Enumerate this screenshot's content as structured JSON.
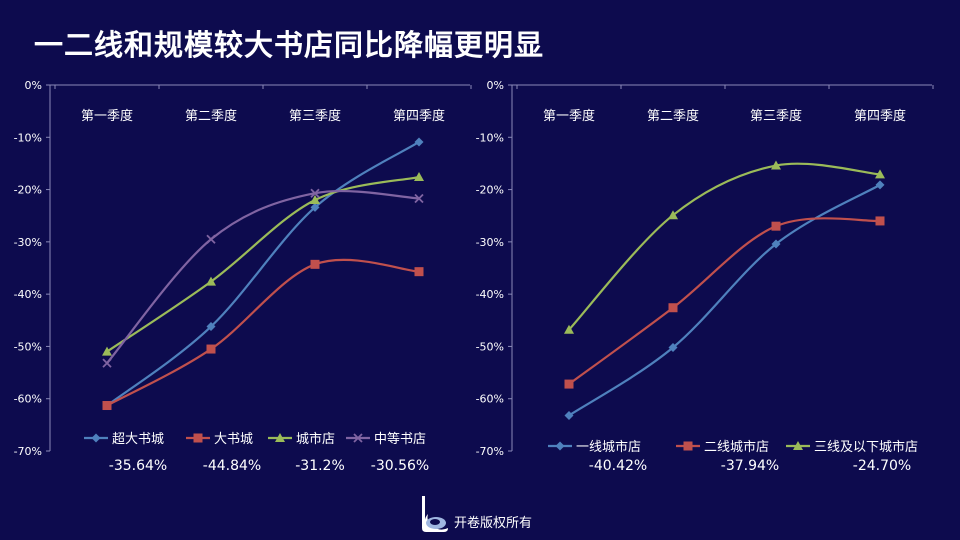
{
  "title": "一二线和规模较大书店同比降幅更明显",
  "footer": {
    "text": "开卷版权所有",
    "logo": "kaijuan-logo"
  },
  "colors": {
    "background": "#0d0b4e",
    "blue": "#4f81bd",
    "red": "#c0504d",
    "green": "#9bbb59",
    "purple": "#8064a2"
  },
  "chart_data": [
    {
      "type": "line",
      "categories": [
        "第一季度",
        "第二季度",
        "第三季度",
        "第四季度"
      ],
      "ylim": [
        -70,
        0
      ],
      "yticks": [
        "0%",
        "-10%",
        "-20%",
        "-30%",
        "-40%",
        "-50%",
        "-60%",
        "-70%"
      ],
      "smooth": true,
      "legend_position": "bottom",
      "series": [
        {
          "name": "超大书城",
          "values": [
            -61.3,
            -46.2,
            -23.4,
            -10.9
          ],
          "marker": "diamond",
          "color": "#4f81bd",
          "summary": "-35.64%"
        },
        {
          "name": "大书城",
          "values": [
            -61.3,
            -50.5,
            -34.3,
            -35.7
          ],
          "marker": "square",
          "color": "#c0504d",
          "summary": "-44.84%"
        },
        {
          "name": "城市店",
          "values": [
            -51.0,
            -37.6,
            -22.0,
            -17.6
          ],
          "marker": "triangle",
          "color": "#9bbb59",
          "summary": "-31.2%"
        },
        {
          "name": "中等书店",
          "values": [
            -53.2,
            -29.5,
            -20.7,
            -21.7
          ],
          "marker": "x",
          "color": "#8064a2",
          "summary": "-30.56%"
        }
      ]
    },
    {
      "type": "line",
      "categories": [
        "第一季度",
        "第二季度",
        "第三季度",
        "第四季度"
      ],
      "ylim": [
        -70,
        0
      ],
      "yticks": [
        "0%",
        "-10%",
        "-20%",
        "-30%",
        "-40%",
        "-50%",
        "-60%",
        "-70%"
      ],
      "smooth": true,
      "legend_position": "bottom",
      "series": [
        {
          "name": "一线城市店",
          "values": [
            -63.2,
            -50.2,
            -30.4,
            -19.1
          ],
          "marker": "diamond",
          "color": "#4f81bd",
          "summary": "-40.42%"
        },
        {
          "name": "二线城市店",
          "values": [
            -57.2,
            -42.6,
            -27.0,
            -26.0
          ],
          "marker": "square",
          "color": "#c0504d",
          "summary": "-37.94%"
        },
        {
          "name": "三线及以下城市店",
          "values": [
            -46.8,
            -24.9,
            -15.4,
            -17.1
          ],
          "marker": "triangle",
          "color": "#9bbb59",
          "summary": "-24.70%"
        }
      ]
    }
  ]
}
